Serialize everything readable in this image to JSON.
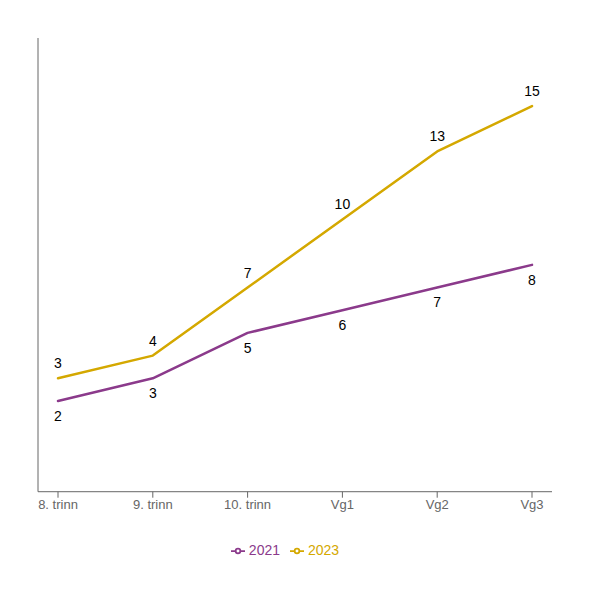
{
  "chart_data": {
    "type": "line",
    "categories": [
      "8. trinn",
      "9. trinn",
      "10. trinn",
      "Vg1",
      "Vg2",
      "Vg3"
    ],
    "series": [
      {
        "name": "2021",
        "color": "#8B3A8B",
        "values": [
          2,
          3,
          5,
          6,
          7,
          8
        ]
      },
      {
        "name": "2023",
        "color": "#D4A800",
        "values": [
          3,
          4,
          7,
          10,
          13,
          15
        ]
      }
    ],
    "ylim": [
      -2,
      18
    ],
    "data_labels": true,
    "tick_labels": "x",
    "legend": "bottom",
    "grid": false
  }
}
